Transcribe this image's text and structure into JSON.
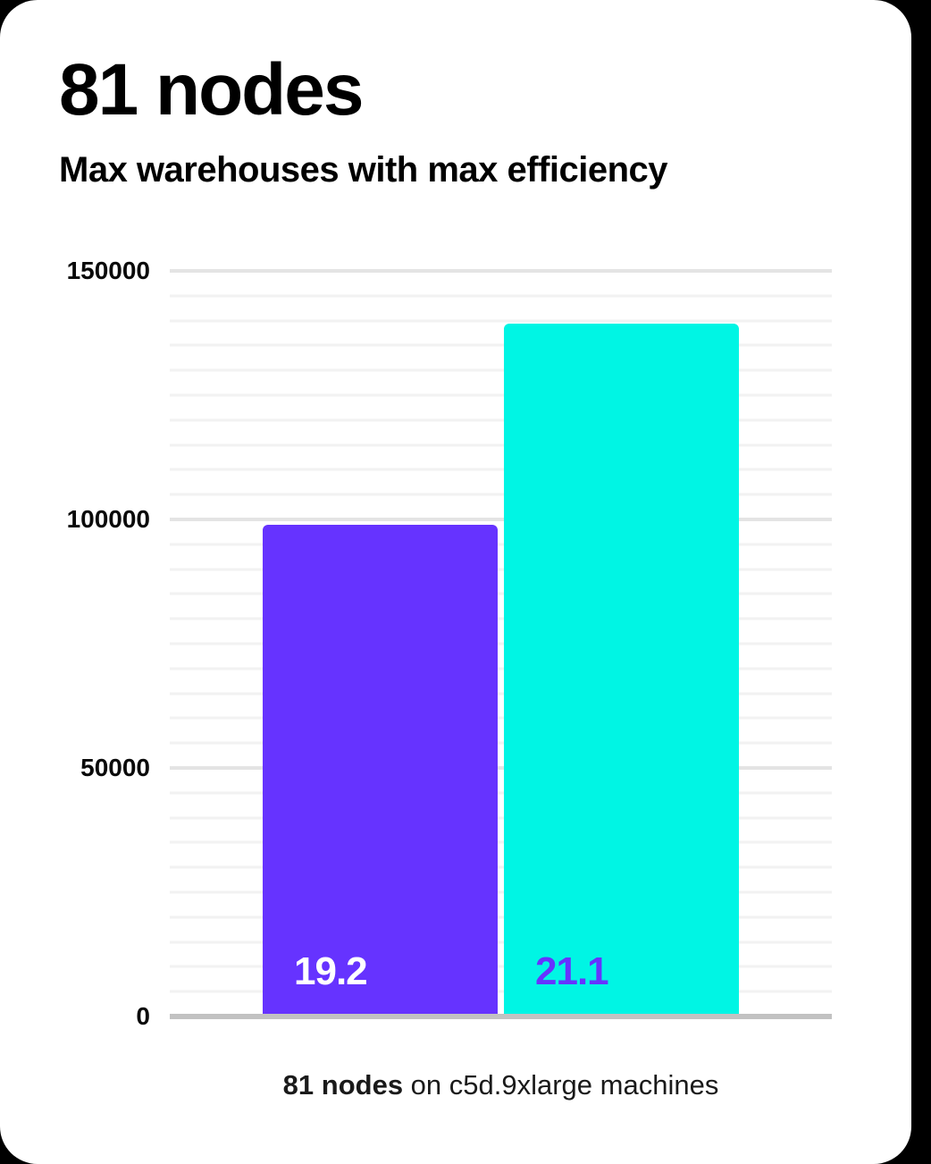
{
  "page": {
    "background_color": "#000000",
    "card_color": "#ffffff"
  },
  "header": {
    "title": "81 nodes",
    "subtitle": "Max warehouses with max efficiency"
  },
  "caption": {
    "bold": "81 nodes",
    "rest": " on c5d.9xlarge machines"
  },
  "colors": {
    "bar_purple": "#6633FF",
    "bar_cyan": "#00F5E4",
    "bar_label_on_purple": "#FFFFFF",
    "bar_label_on_cyan": "#6633FF",
    "axis_line": "#C2C2C2",
    "major_gridline": "#E4E4E4",
    "minor_gridline": "#F2F2F2",
    "text": "#000000"
  },
  "chart_data": {
    "type": "bar",
    "title": "81 nodes",
    "subtitle": "Max warehouses with max efficiency",
    "caption": "81 nodes on c5d.9xlarge machines",
    "xlabel": "",
    "ylabel": "",
    "categories": [
      "19.2",
      "21.1"
    ],
    "series": [
      {
        "key": "bar-purple",
        "value": 99500,
        "value_label": "19.2",
        "bar_color": "#6633FF",
        "label_color": "#FFFFFF"
      },
      {
        "key": "bar-cyan",
        "value": 140000,
        "value_label": "21.1",
        "bar_color": "#00F5E4",
        "label_color": "#6633FF"
      }
    ],
    "ylim": [
      0,
      150000
    ],
    "y_ticks": [
      150000,
      100000,
      50000,
      0
    ],
    "minor_grid_step": 5000,
    "major_grid_step": 50000,
    "grid": true,
    "legend": false
  }
}
